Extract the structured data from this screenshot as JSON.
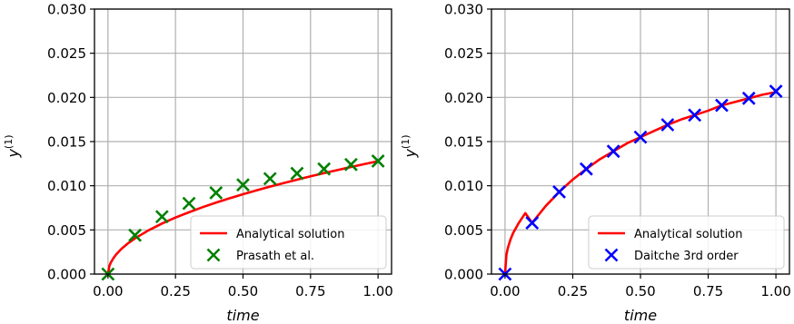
{
  "chart_data": [
    {
      "type": "line",
      "xlabel": "time",
      "ylabel": "y",
      "ylabel_superscript": "(1)",
      "xlim": [
        0.0,
        1.0
      ],
      "ylim": [
        0.0,
        0.03
      ],
      "x_ticks": [
        "0.00",
        "0.25",
        "0.50",
        "0.75",
        "1.00"
      ],
      "y_ticks": [
        "0.000",
        "0.005",
        "0.010",
        "0.015",
        "0.020",
        "0.025",
        "0.030"
      ],
      "grid": true,
      "legend_position": "lower-right",
      "series": [
        {
          "name": "Analytical solution",
          "kind": "line",
          "color": "#ff0000",
          "x": [
            0.0,
            0.005,
            0.01,
            0.02,
            0.03,
            0.05,
            0.075,
            0.1,
            0.15,
            0.2,
            0.25,
            0.3,
            0.35,
            0.4,
            0.45,
            0.5,
            0.55,
            0.6,
            0.65,
            0.7,
            0.75,
            0.8,
            0.85,
            0.9,
            0.95,
            1.0
          ],
          "y": [
            0.0,
            0.0009,
            0.00128,
            0.0018,
            0.00221,
            0.00286,
            0.0035,
            0.00404,
            0.00495,
            0.00572,
            0.0064,
            0.007,
            0.00757,
            0.00809,
            0.00858,
            0.00904,
            0.00948,
            0.0099,
            0.0103,
            0.01069,
            0.01107,
            0.01143,
            0.01178,
            0.01212,
            0.01246,
            0.01278
          ]
        },
        {
          "name": "Prasath et al.",
          "kind": "scatter",
          "marker": "x",
          "color": "#008000",
          "x": [
            0.0,
            0.1,
            0.2,
            0.3,
            0.4,
            0.5,
            0.6,
            0.7,
            0.8,
            0.9,
            1.0
          ],
          "y": [
            0.0,
            0.0044,
            0.0065,
            0.008,
            0.0092,
            0.0101,
            0.0108,
            0.0114,
            0.0119,
            0.0124,
            0.0128
          ]
        }
      ]
    },
    {
      "type": "line",
      "xlabel": "time",
      "ylabel": "y",
      "ylabel_superscript": "(1)",
      "xlim": [
        0.0,
        1.0
      ],
      "ylim": [
        0.0,
        0.03
      ],
      "x_ticks": [
        "0.00",
        "0.25",
        "0.50",
        "0.75",
        "1.00"
      ],
      "y_ticks": [
        "0.000",
        "0.005",
        "0.010",
        "0.015",
        "0.020",
        "0.025",
        "0.030"
      ],
      "grid": true,
      "legend_position": "lower-right",
      "series": [
        {
          "name": "Analytical solution",
          "kind": "line",
          "color": "#ff0000",
          "x": [
            0.0,
            0.005,
            0.01,
            0.02,
            0.03,
            0.05,
            0.075,
            0.1,
            0.15,
            0.2,
            0.25,
            0.3,
            0.35,
            0.4,
            0.45,
            0.5,
            0.55,
            0.6,
            0.65,
            0.7,
            0.75,
            0.8,
            0.85,
            0.9,
            0.95,
            1.0
          ],
          "y": [
            0.0,
            0.00215,
            0.0029,
            0.0039,
            0.00465,
            0.00575,
            0.0069,
            0.0058,
            0.0077,
            0.0093,
            0.0107,
            0.0119,
            0.013,
            0.0139,
            0.0148,
            0.0155,
            0.0162,
            0.0169,
            0.0175,
            0.018,
            0.0185,
            0.0191,
            0.0195,
            0.0199,
            0.0203,
            0.0206
          ]
        },
        {
          "name": "Daitche 3rd order",
          "kind": "scatter",
          "marker": "x",
          "color": "#0000ff",
          "x": [
            0.0,
            0.1,
            0.2,
            0.3,
            0.4,
            0.5,
            0.6,
            0.7,
            0.8,
            0.9,
            1.0
          ],
          "y": [
            0.0,
            0.0058,
            0.0093,
            0.0119,
            0.0139,
            0.0155,
            0.0169,
            0.018,
            0.0191,
            0.0199,
            0.0207
          ]
        }
      ]
    }
  ]
}
